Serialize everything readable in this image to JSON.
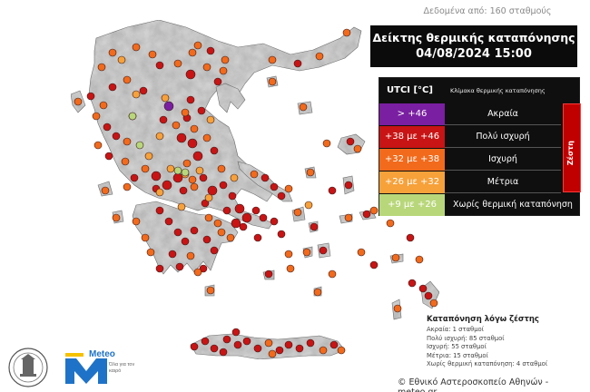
{
  "source_note": "Δεδομένα από: 160 σταθμούς",
  "title": {
    "line1": "Δείκτης θερμικής καταπόνησης",
    "line2": "04/08/2024 15:00"
  },
  "legend": {
    "col1_header": "UTCI [°C]",
    "col2_header": "Κλίμακα θερμικής καταπόνησης",
    "heat_group_label": "Ζέστη",
    "rows": [
      {
        "range": "> +46",
        "label": "Ακραία",
        "color": "#7a1fa2",
        "text_color": "#ffffff"
      },
      {
        "range": "+38 με +46",
        "label": "Πολύ ισχυρή",
        "color": "#c81414",
        "text_color": "#ffffff"
      },
      {
        "range": "+32 με +38",
        "label": "Ισχυρή",
        "color": "#f26a1b",
        "text_color": "#ffffff"
      },
      {
        "range": "+26 με +32",
        "label": "Μέτρια",
        "color": "#f7a13a",
        "text_color": "#ffffff"
      },
      {
        "range": "+9 με +26",
        "label": "Χωρίς θερμική καταπόνηση",
        "color": "#b8d77a",
        "text_color": "#ffffff"
      }
    ]
  },
  "summary": {
    "title": "Καταπόνηση λόγω ζέστης",
    "lines": [
      "Ακραία: 1 σταθμοί",
      "Πολύ ισχυρή: 85 σταθμοί",
      "Ισχυρή: 55 σταθμοί",
      "Μέτρια: 15 σταθμοί",
      "Χωρίς θερμική καταπόνηση: 4 σταθμοί"
    ]
  },
  "copyright": "© Εθνικό Αστεροσκοπείο Αθηνών - meteo.gr",
  "logos": {
    "meteo_name": "Meteo",
    "meteo_tagline": "Όλα για τον καιρό",
    "meteo_color": "#1e73c8"
  },
  "map": {
    "land_color": "#d4d4d4",
    "relief_color": "#bdbdbd",
    "station_counts": {
      "extreme": 1,
      "very_strong": 85,
      "strong": 55,
      "moderate": 15,
      "none": 4
    }
  }
}
